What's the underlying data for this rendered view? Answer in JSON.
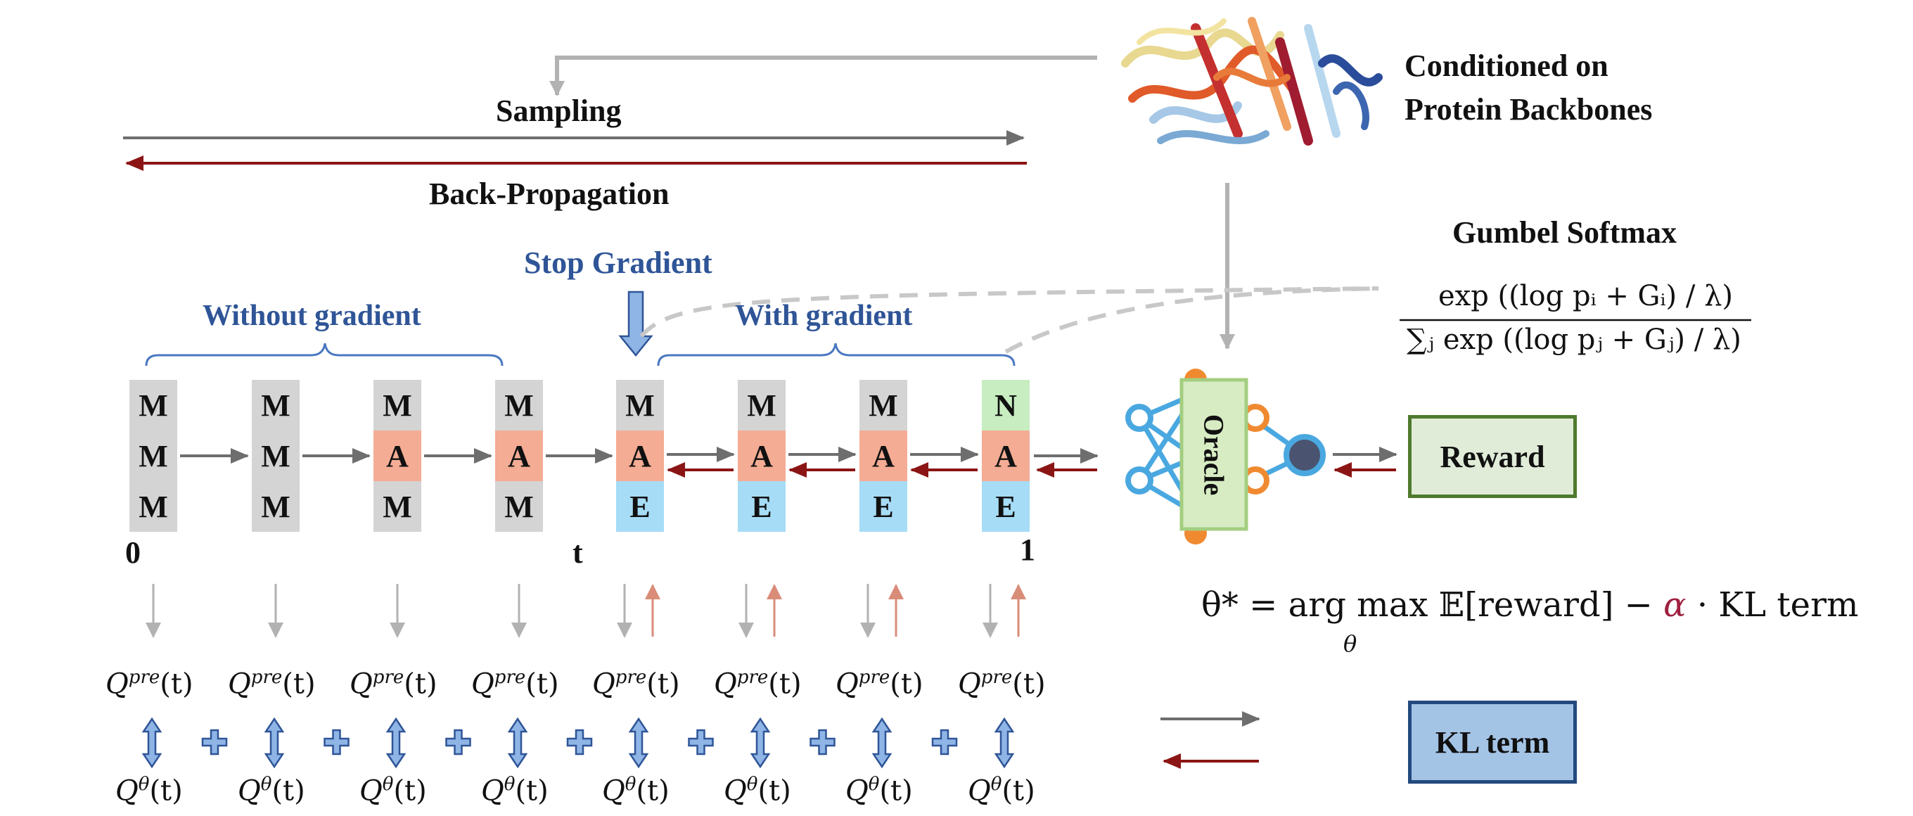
{
  "labels": {
    "sampling": "Sampling",
    "back_propagation": "Back-Propagation",
    "conditioned_line1": "Conditioned on",
    "conditioned_line2": "Protein Backbones",
    "gumbel_title": "Gumbel Softmax",
    "stop_gradient": "Stop Gradient",
    "without_gradient": "Without gradient",
    "with_gradient": "With gradient",
    "t0": "0",
    "tt": "t",
    "t1": "1",
    "oracle": "Oracle",
    "reward": "Reward",
    "kl_term": "KL term"
  },
  "formulas": {
    "gumbel_numerator": "exp ((log pᵢ + Gᵢ) / λ)",
    "gumbel_denominator": "∑ⱼ exp ((log pⱼ + Gⱼ) / λ)",
    "objective_lhs": "θ* = arg max",
    "objective_sub": "θ",
    "objective_mid": "𝔼[reward] −",
    "objective_alpha": "α",
    "objective_rhs": "· KL term",
    "q_pre": "Q",
    "q_pre_sup": "pre",
    "q_theta": "Q",
    "q_theta_sup": "θ",
    "q_arg": "(t)"
  },
  "columns": [
    [
      "M",
      "M",
      "M"
    ],
    [
      "M",
      "M",
      "M"
    ],
    [
      "M",
      "A",
      "M"
    ],
    [
      "M",
      "A",
      "M"
    ],
    [
      "M",
      "A",
      "E"
    ],
    [
      "M",
      "A",
      "E"
    ],
    [
      "M",
      "A",
      "E"
    ],
    [
      "N",
      "A",
      "E"
    ]
  ],
  "colors": {
    "M": "#d4d4d4",
    "A": "#f4ac94",
    "E": "#a6dcf6",
    "N": "#c7edc0",
    "blue_text": "#2f5597",
    "dark_red": "#8b1515",
    "gray_arrow": "#6e6e6e",
    "reward_fill": "#e0ecd8",
    "reward_border": "#4f7a2d",
    "kl_fill": "#a4c4e6",
    "kl_border": "#234a7e",
    "alpha": "#a02040"
  }
}
